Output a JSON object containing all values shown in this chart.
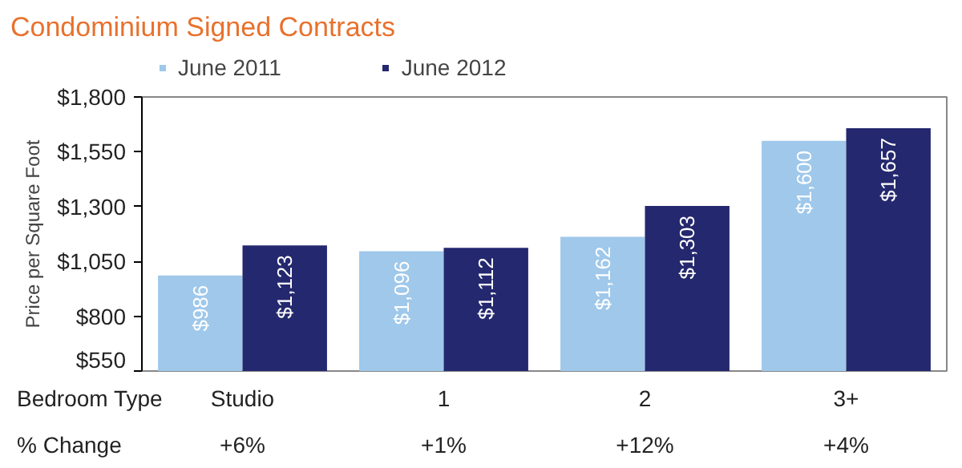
{
  "chart_data": {
    "type": "bar",
    "title": "Condominium Signed Contracts",
    "xlabel": "Bedroom Type",
    "ylabel": "Price per Square Foot",
    "categories": [
      "Studio",
      "1",
      "2",
      "3+"
    ],
    "series": [
      {
        "name": "June 2011",
        "color": "#9fc8ea",
        "values": [
          986,
          1096,
          1162,
          1600
        ],
        "value_labels": [
          "$986",
          "$1,096",
          "$1,162",
          "$1,600"
        ]
      },
      {
        "name": "June 2012",
        "color": "#24286e",
        "values": [
          1123,
          1112,
          1303,
          1657
        ],
        "value_labels": [
          "$1,123",
          "$1,112",
          "$1,303",
          "$1,657"
        ]
      }
    ],
    "ylim": [
      550,
      1800
    ],
    "yticks": [
      {
        "value": 550,
        "label": "$550"
      },
      {
        "value": 800,
        "label": "$800"
      },
      {
        "value": 1050,
        "label": "$1,050"
      },
      {
        "value": 1300,
        "label": "$1,300"
      },
      {
        "value": 1550,
        "label": "$1,550"
      },
      {
        "value": 1800,
        "label": "$1,800"
      }
    ],
    "annotations": [
      "% Change",
      "+6%",
      "+1%",
      "+12%",
      "+4%"
    ],
    "legend": "top left",
    "grid": false
  }
}
